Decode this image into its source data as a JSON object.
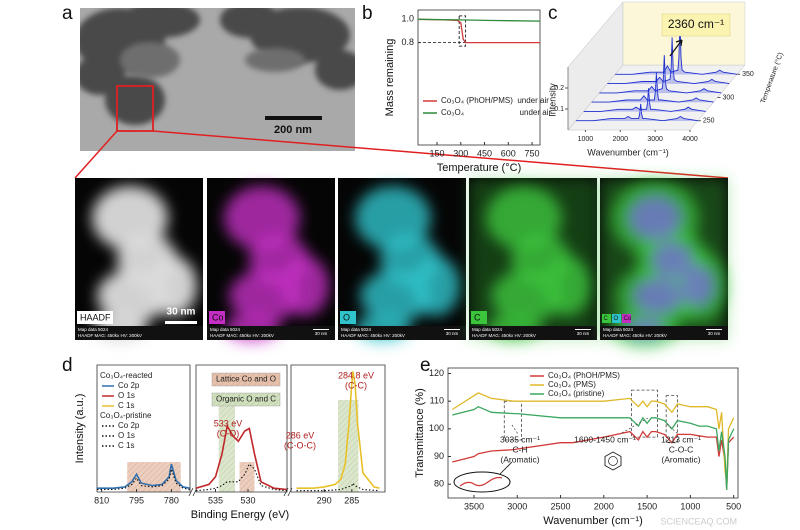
{
  "panel_labels": [
    "a",
    "b",
    "c",
    "d",
    "e"
  ],
  "tem_scale": "200 nm",
  "maps": [
    {
      "label": "HAADF",
      "color": "#dcdcdc"
    },
    {
      "label": "Co",
      "color": "#c42ec4"
    },
    {
      "label": "O",
      "color": "#2fc4cc"
    },
    {
      "label": "C",
      "color": "#3cc43c"
    }
  ],
  "overlay_labels": [
    "C",
    "O",
    "Co"
  ],
  "map_info": "Map data 5024",
  "map_params": "HAADF  MAG: 450kx  HV: 200kV",
  "map_scale": "30 nm",
  "watermark": "SCIENCEAQ.COM",
  "chart_data": [
    {
      "type": "line",
      "xlabel": "Temperature (°C)",
      "ylabel": "Mass remaining",
      "xlim": [
        30,
        800
      ],
      "ylim": [
        -0.08,
        1.08
      ],
      "xticks": [
        150,
        300,
        450,
        600,
        750
      ],
      "yticks": [
        0.8,
        {
          "value": 1,
          "label": "1.0"
        }
      ],
      "hline": 0.8,
      "highlight_x": [
        290,
        330
      ],
      "highlight_y": [
        0.77,
        1.03
      ],
      "series": [
        {
          "name": "Co₃O₄ (PhOH/PMS)  under air",
          "color": "#d23a3a",
          "x": [
            30,
            200,
            280,
            300,
            315,
            330,
            500,
            800
          ],
          "values": [
            1.0,
            0.995,
            0.99,
            0.97,
            0.83,
            0.8,
            0.8,
            0.8
          ]
        },
        {
          "name": "Co₃O₄                         under air",
          "color": "#2e8b3a",
          "x": [
            30,
            300,
            500,
            800
          ],
          "values": [
            1.0,
            0.995,
            0.99,
            0.985
          ]
        }
      ]
    },
    {
      "type": "waterfall3d",
      "xlabel": "Wavenumber (cm⁻¹)",
      "ylabel": "Intensity",
      "zlabel": "Temperature (°C)",
      "annotation": "2360 cm⁻¹",
      "color": "#1f2fd0",
      "xlim": [
        500,
        4000
      ],
      "xticks": [
        1000,
        2000,
        3000,
        4000
      ],
      "ylim": [
        0,
        0.3
      ],
      "yticks": [
        0.1,
        0.2
      ],
      "zlim": [
        230,
        370
      ],
      "zticks": [
        250,
        300,
        350
      ],
      "x": [
        500,
        1000,
        1500,
        1900,
        2000,
        2100,
        2300,
        2330,
        2360,
        2390,
        2420,
        2500,
        3000,
        3400,
        3500,
        3600,
        4000
      ],
      "series": [
        {
          "z": 250,
          "values": [
            0,
            0,
            0.01,
            0.01,
            0.02,
            0.01,
            0.01,
            0.03,
            0.08,
            0.03,
            0.01,
            0.01,
            0,
            0.01,
            0.02,
            0.01,
            0
          ]
        },
        {
          "z": 270,
          "values": [
            0,
            0,
            0.01,
            0.01,
            0.02,
            0.01,
            0.01,
            0.04,
            0.11,
            0.04,
            0.01,
            0.01,
            0,
            0.01,
            0.02,
            0.01,
            0
          ]
        },
        {
          "z": 290,
          "values": [
            0,
            0,
            0.01,
            0.01,
            0.03,
            0.01,
            0.01,
            0.05,
            0.14,
            0.05,
            0.01,
            0.01,
            0,
            0.01,
            0.02,
            0.01,
            0
          ]
        },
        {
          "z": 310,
          "values": [
            0,
            0,
            0.01,
            0.01,
            0.03,
            0.01,
            0.02,
            0.06,
            0.18,
            0.06,
            0.02,
            0.01,
            0,
            0.01,
            0.02,
            0.01,
            0
          ]
        },
        {
          "z": 330,
          "values": [
            0,
            0,
            0.01,
            0.01,
            0.03,
            0.01,
            0.02,
            0.07,
            0.22,
            0.07,
            0.02,
            0.01,
            0,
            0.01,
            0.02,
            0.01,
            0
          ]
        },
        {
          "z": 350,
          "values": [
            0,
            0,
            0.01,
            0.01,
            0.04,
            0.01,
            0.02,
            0.08,
            0.26,
            0.08,
            0.02,
            0.01,
            0,
            0.01,
            0.02,
            0.01,
            0
          ]
        }
      ]
    },
    {
      "type": "broken_line",
      "xlabel": "Binding Energy (eV)",
      "ylabel": "Intensity (a.u.)",
      "ylim": [
        0,
        100
      ],
      "segments": [
        {
          "xlim": [
            812,
            772
          ],
          "xticks": [
            810,
            795,
            780
          ]
        },
        {
          "xlim": [
            538,
            524
          ],
          "xticks": [
            535,
            530
          ]
        },
        {
          "xlim": [
            296,
            279
          ],
          "xticks": [
            290,
            285
          ]
        }
      ],
      "legend_groups": [
        "Co₃O₄-reacted",
        "Co₃O₄-pristine"
      ],
      "region_labels": [
        {
          "text": "Lattice Co and O",
          "color": "#e6c2ad"
        },
        {
          "text": "Organic O and C",
          "color": "#cfe2bf"
        }
      ],
      "regions": [
        {
          "segment": 0,
          "x": [
            799,
            776
          ],
          "kind": 0
        },
        {
          "segment": 1,
          "x": [
            531.3,
            529
          ],
          "kind": 0
        },
        {
          "segment": 1,
          "x": [
            534.5,
            532
          ],
          "kind": 1
        },
        {
          "segment": 2,
          "x": [
            287.5,
            283.8
          ],
          "kind": 1
        }
      ],
      "annotations": [
        [
          "533 eV",
          "(C-O)"
        ],
        [
          "286 eV",
          "(C-O-C)"
        ],
        [
          "284.8 eV",
          "(C-C)"
        ]
      ],
      "series": [
        {
          "name": "Co 2p",
          "group": 0,
          "segment": 0,
          "color": "#2f6fad",
          "x": [
            812,
            805,
            800,
            797,
            795,
            793,
            788,
            784,
            781,
            780,
            778,
            775,
            772
          ],
          "values": [
            3,
            3,
            4,
            8,
            14,
            7,
            5,
            6,
            12,
            22,
            9,
            4,
            3
          ]
        },
        {
          "name": "O 1s",
          "group": 0,
          "segment": 1,
          "color": "#c0282b",
          "x": [
            538,
            536,
            535,
            534,
            533.2,
            532.3,
            531.5,
            530.5,
            529.8,
            529,
            528,
            526,
            524
          ],
          "values": [
            3,
            6,
            12,
            30,
            52,
            44,
            40,
            48,
            50,
            30,
            8,
            3,
            2
          ]
        },
        {
          "name": "C 1s",
          "group": 0,
          "segment": 2,
          "color": "#e8c12a",
          "x": [
            295,
            292,
            290,
            288,
            287,
            286.2,
            285.5,
            285,
            284.8,
            284.4,
            284,
            283,
            281,
            280
          ],
          "values": [
            3,
            3,
            4,
            6,
            10,
            22,
            55,
            85,
            95,
            85,
            55,
            15,
            4,
            3
          ]
        },
        {
          "name": "Co 2p",
          "group": 1,
          "segment": 0,
          "color": "#111111",
          "dash": true,
          "x": [
            812,
            805,
            800,
            797,
            795,
            793,
            788,
            784,
            781,
            780,
            778,
            775,
            772
          ],
          "values": [
            2,
            2,
            3,
            6,
            11,
            5,
            4,
            5,
            10,
            18,
            7,
            3,
            2
          ]
        },
        {
          "name": "O 1s",
          "group": 1,
          "segment": 1,
          "color": "#111111",
          "dash": true,
          "x": [
            538,
            536,
            535,
            534,
            533.2,
            532.3,
            531.5,
            530.5,
            529.8,
            529,
            528,
            526,
            524
          ],
          "values": [
            1,
            2,
            3,
            5,
            8,
            8,
            8,
            14,
            22,
            18,
            5,
            2,
            1
          ]
        },
        {
          "name": "C 1s",
          "group": 1,
          "segment": 2,
          "color": "#111111",
          "dash": true,
          "x": [
            295,
            290,
            287,
            285,
            284.8,
            284.5,
            283,
            280
          ],
          "values": [
            1,
            1,
            2,
            5,
            7,
            5,
            2,
            1
          ]
        }
      ]
    },
    {
      "type": "line",
      "xlabel": "Wavenumber (cm⁻¹)",
      "ylabel": "Transmittance (%)",
      "xlim": [
        3800,
        450
      ],
      "ylim": [
        75,
        122
      ],
      "xticks": [
        3500,
        3000,
        2500,
        2000,
        1500,
        1000,
        500
      ],
      "yticks": [
        80,
        90,
        100,
        110,
        120
      ],
      "x": [
        3750,
        3500,
        3450,
        3300,
        3035,
        3000,
        2500,
        2360,
        2000,
        1700,
        1600,
        1550,
        1500,
        1450,
        1400,
        1300,
        1213,
        1150,
        1000,
        900,
        800,
        700,
        670,
        640,
        600,
        580,
        560,
        500
      ],
      "boxes": [
        {
          "x": [
            3150,
            2950
          ],
          "y": [
            96,
            110
          ]
        },
        {
          "x": [
            1680,
            1380
          ],
          "y": [
            97,
            114
          ]
        },
        {
          "x": [
            1280,
            1150
          ],
          "y": [
            95,
            112
          ]
        }
      ],
      "annotations": [
        [
          "3035 cm⁻¹",
          "C-H",
          "(Aromatic)"
        ],
        [
          "1600-1450 cm⁻¹"
        ],
        [
          "1213 cm⁻¹",
          "C-O-C",
          "(Aromatic)"
        ]
      ],
      "series": [
        {
          "name": "Co₃O₄ (PhOH/PMS)",
          "color": "#d23a3a",
          "values": [
            88,
            90,
            91,
            92,
            92.5,
            92.7,
            95,
            95,
            97,
            99,
            96,
            99,
            97,
            99,
            99,
            98,
            95,
            98,
            98,
            97.5,
            97,
            97,
            90,
            96,
            88,
            78,
            95,
            97
          ]
        },
        {
          "name": "Co₃O₄ (PMS)",
          "color": "#e0b92a",
          "values": [
            107,
            112,
            113,
            111,
            110,
            110,
            110,
            110,
            110,
            111,
            108,
            110,
            108,
            110,
            110,
            109,
            106,
            109,
            108,
            108,
            108,
            107,
            100,
            106,
            85,
            80,
            100,
            104
          ]
        },
        {
          "name": "Co₃O₄ (pristine)",
          "color": "#3aa860",
          "values": [
            105,
            107,
            108,
            106,
            105.5,
            105.5,
            104,
            104,
            104,
            104,
            101,
            104,
            102,
            104,
            104,
            103,
            100,
            103,
            102,
            101,
            101,
            100,
            92,
            99,
            90,
            78,
            96,
            100
          ]
        }
      ]
    }
  ]
}
